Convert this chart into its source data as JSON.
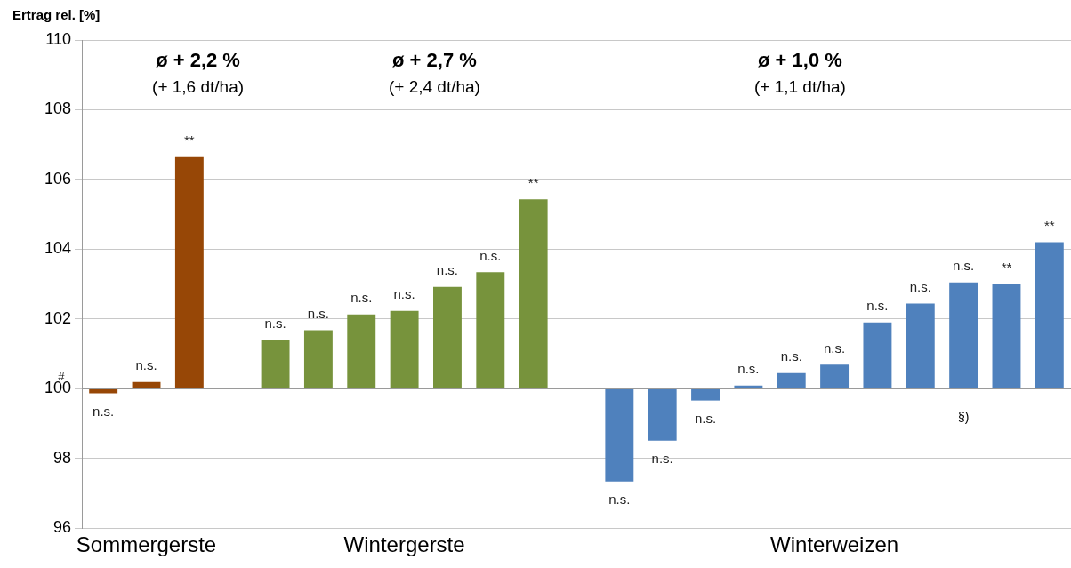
{
  "chart_data": {
    "type": "bar",
    "ylabel": "Ertrag rel. [%]",
    "categories": [
      null,
      "Sommergerste",
      null,
      null,
      null,
      null,
      null,
      "Wintergerste",
      null,
      null,
      null,
      null,
      null,
      null,
      null,
      null,
      null,
      "Winterweizen",
      null,
      null,
      null,
      null,
      null
    ],
    "base": [
      100,
      100,
      100,
      null,
      100,
      100,
      100,
      100,
      100,
      100,
      100,
      null,
      100,
      100,
      100,
      100,
      100,
      100,
      100,
      100,
      100,
      100,
      100
    ],
    "values": [
      -0.13,
      0.19,
      6.64,
      null,
      1.4,
      1.68,
      2.13,
      2.23,
      2.92,
      3.34,
      5.43,
      null,
      -2.66,
      -1.49,
      -0.34,
      0.09,
      0.45,
      0.69,
      1.9,
      2.44,
      3.05,
      3.0,
      4.2
    ],
    "colors": [
      "#974706",
      "#974706",
      "#974706",
      null,
      "#77933c",
      "#77933c",
      "#77933c",
      "#77933c",
      "#77933c",
      "#77933c",
      "#77933c",
      null,
      "#4f81bd",
      "#4f81bd",
      "#4f81bd",
      "#4f81bd",
      "#4f81bd",
      "#4f81bd",
      "#4f81bd",
      "#4f81bd",
      "#4f81bd",
      "#4f81bd",
      "#4f81bd"
    ],
    "value_labels": [
      "n.s.",
      "n.s.",
      "**",
      null,
      "n.s.",
      "n.s.",
      "n.s.",
      "n.s.",
      "n.s.",
      "n.s.",
      "**",
      null,
      "n.s.",
      "n.s.",
      "n.s.",
      "n.s.",
      "n.s.",
      "n.s.",
      "n.s.",
      "n.s.",
      "n.s.",
      "**",
      "**"
    ],
    "annotations": [
      "ø + 2,2 %",
      "(+ 1,6 dt/ha)",
      "ø + 2,7 %",
      "(+ 2,4 dt/ha)",
      "ø + 1,0 %",
      "(+ 1,1 dt/ha)",
      "#",
      "§)"
    ],
    "ylim": [
      96,
      110
    ],
    "yticks": [
      96,
      98,
      100,
      102,
      104,
      106,
      108,
      110
    ],
    "ref_lines": [
      {
        "axis": "y",
        "value": 100,
        "color": "#9a9a9a"
      }
    ],
    "grid": "y",
    "legend": false
  }
}
